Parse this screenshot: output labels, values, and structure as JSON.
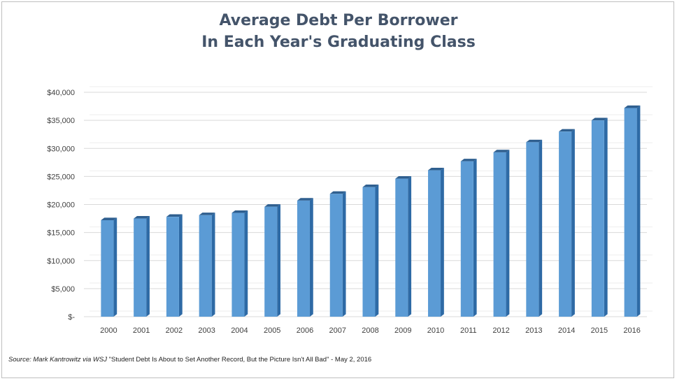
{
  "title_line1": "Average Debt Per Borrower",
  "title_line2": "In Each Year's Graduating Class",
  "source_label": "Source: Mark Kantrowitz via WSJ",
  "source_text": " \"Student Debt Is About to Set Another Record, But the Picture Isn't All Bad\" - May 2, 2016",
  "colors": {
    "bar_front": "#5b9bd5",
    "bar_side": "#2e6aa5",
    "bar_top": "#2f5f8f",
    "grid": "#d9d9d9",
    "axis_text": "#404040",
    "title": "#44546a"
  },
  "chart_data": {
    "type": "bar",
    "title": "Average Debt Per Borrower In Each Year's Graduating Class",
    "xlabel": "",
    "ylabel": "",
    "categories": [
      "2000",
      "2001",
      "2002",
      "2003",
      "2004",
      "2005",
      "2006",
      "2007",
      "2008",
      "2009",
      "2010",
      "2011",
      "2012",
      "2013",
      "2014",
      "2015",
      "2016"
    ],
    "values": [
      17200,
      17500,
      17800,
      18100,
      18500,
      19600,
      20700,
      21900,
      23100,
      24600,
      26100,
      27700,
      29300,
      31100,
      33000,
      35000,
      37200
    ],
    "ylim": [
      0,
      40000
    ],
    "yticks": [
      0,
      5000,
      10000,
      15000,
      20000,
      25000,
      30000,
      35000,
      40000
    ],
    "ytick_labels": [
      "$-",
      "$5,000",
      "$10,000",
      "$15,000",
      "$20,000",
      "$25,000",
      "$30,000",
      "$35,000",
      "$40,000"
    ],
    "grid": true,
    "legend": "none",
    "style": "3d-column"
  }
}
